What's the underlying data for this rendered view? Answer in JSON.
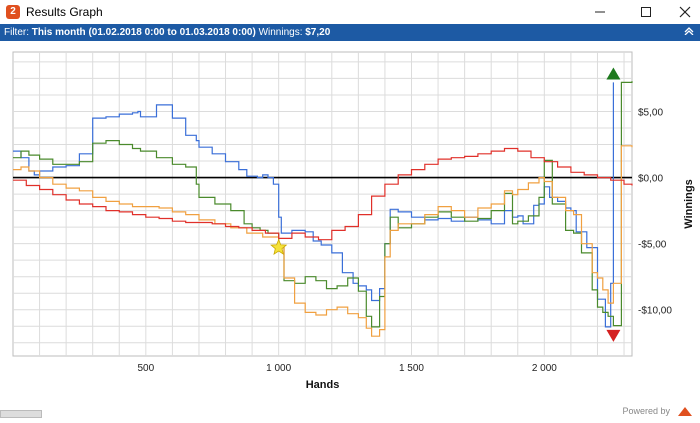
{
  "window": {
    "title": "Results Graph",
    "icon": "app-logo-icon",
    "minimize_icon": "minimize-icon",
    "maximize_icon": "maximize-icon",
    "close_icon": "close-icon"
  },
  "filter": {
    "prefix": "Filter:",
    "range": "This month (01.02.2018 0:00 to 01.03.2018 0:00)",
    "winnings_label": "Winnings:",
    "winnings_value": "$7,20",
    "collapse_icon": "chevron-up-icon"
  },
  "footer": {
    "powered_by": "Powered by"
  },
  "colors": {
    "filter_bar": "#1d5aa4",
    "winnings": "#4a8a2c",
    "showdown": "#3a6fd8",
    "nonshowdown": "#e0302a",
    "allin_ev": "#f0a040",
    "zero_line": "#000000",
    "grid": "#dcdcdc",
    "up_marker": "#1e7a1e",
    "down_marker": "#d42020",
    "star_marker": "#f5e23a"
  },
  "chart_data": {
    "type": "line",
    "xlabel": "Hands",
    "ylabel": "Winnings",
    "x_ticks": [
      500,
      1000,
      1500,
      2000
    ],
    "x_tick_labels": [
      "500",
      "1 000",
      "1 500",
      "2 000"
    ],
    "y_ticks": [
      7.5,
      5,
      2.5,
      0,
      -2.5,
      -5,
      -7.5,
      -10
    ],
    "y_tick_labels": [
      "$5,00",
      "$0,00",
      "-$5,00",
      "-$10,00"
    ],
    "y_tick_label_values": [
      5,
      0,
      -5,
      -10
    ],
    "xlim": [
      0,
      2330
    ],
    "ylim": [
      -13.5,
      9.5
    ],
    "grid": true,
    "markers": {
      "up": {
        "x": 2260,
        "y": 7.8
      },
      "down": {
        "x": 2260,
        "y": -11.9
      },
      "star": {
        "x": 1000,
        "y": -5.3
      }
    },
    "series": [
      {
        "color_key": "showdown",
        "x": [
          0,
          30,
          60,
          80,
          100,
          150,
          200,
          250,
          300,
          350,
          400,
          450,
          470,
          480,
          500,
          540,
          600,
          650,
          690,
          700,
          750,
          800,
          850,
          880,
          920,
          940,
          960,
          980,
          1000,
          1010,
          1050,
          1100,
          1130,
          1160,
          1200,
          1240,
          1280,
          1300,
          1330,
          1350,
          1380,
          1400,
          1420,
          1450,
          1500,
          1550,
          1600,
          1650,
          1700,
          1750,
          1800,
          1850,
          1880,
          1900,
          1920,
          1960,
          1980,
          2000,
          2020,
          2050,
          2080,
          2100,
          2120,
          2160,
          2200,
          2230,
          2250,
          2260
        ],
        "y": [
          2.0,
          1.5,
          0.5,
          0.2,
          0.5,
          0.8,
          0.9,
          1.8,
          4.5,
          4.6,
          4.8,
          4.9,
          5.0,
          4.6,
          4.6,
          5.5,
          4.5,
          3.2,
          2.8,
          2.3,
          1.8,
          1.2,
          0.6,
          0.1,
          0.0,
          0.2,
          0.0,
          -0.5,
          -3.0,
          -4.2,
          -4.0,
          -4.1,
          -4.8,
          -5.1,
          -5.7,
          -7.2,
          -8.0,
          -8.2,
          -8.5,
          -9.3,
          -8.4,
          -5.0,
          -2.4,
          -2.6,
          -3.0,
          -3.2,
          -3.1,
          -3.3,
          -3.0,
          -3.2,
          -3.5,
          -2.5,
          -3.0,
          -2.9,
          -3.5,
          -2.1,
          -2.0,
          -0.7,
          -1.5,
          -1.8,
          -2.3,
          -2.5,
          -4.1,
          -5.3,
          -9.2,
          -11.3,
          -8.0,
          7.2
        ]
      },
      {
        "color_key": "winnings",
        "x": [
          0,
          30,
          60,
          100,
          150,
          200,
          250,
          300,
          350,
          400,
          450,
          480,
          500,
          540,
          600,
          650,
          690,
          700,
          760,
          820,
          870,
          900,
          930,
          960,
          1000,
          1020,
          1060,
          1100,
          1140,
          1180,
          1220,
          1260,
          1300,
          1330,
          1350,
          1380,
          1400,
          1420,
          1450,
          1500,
          1550,
          1600,
          1650,
          1700,
          1750,
          1800,
          1850,
          1880,
          1900,
          1940,
          1980,
          2000,
          2030,
          2080,
          2110,
          2140,
          2180,
          2200,
          2220,
          2240,
          2260,
          2290,
          2330
        ],
        "y": [
          1.5,
          2.0,
          1.7,
          1.4,
          1.0,
          1.0,
          1.2,
          2.6,
          2.8,
          2.5,
          2.2,
          2.0,
          2.0,
          1.5,
          1.0,
          0.8,
          -0.5,
          -1.5,
          -2.0,
          -2.5,
          -3.5,
          -3.8,
          -4.0,
          -4.2,
          -5.3,
          -7.8,
          -8.0,
          -7.5,
          -7.8,
          -8.4,
          -8.2,
          -7.6,
          -8.6,
          -10.5,
          -11.3,
          -9.0,
          -5.0,
          -3.0,
          -3.8,
          -3.5,
          -3.0,
          -2.6,
          -3.0,
          -3.3,
          -3.1,
          -2.5,
          -1.2,
          -3.5,
          -3.3,
          -2.9,
          -1.5,
          1.3,
          -2.0,
          -4.0,
          -4.2,
          -5.7,
          -8.5,
          -9.8,
          -10.2,
          -10.5,
          -11.2,
          7.2,
          7.3
        ]
      },
      {
        "color_key": "allin_ev",
        "x": [
          0,
          30,
          60,
          100,
          150,
          200,
          250,
          300,
          350,
          400,
          450,
          500,
          550,
          600,
          650,
          700,
          760,
          820,
          880,
          940,
          1000,
          1020,
          1060,
          1100,
          1140,
          1180,
          1220,
          1260,
          1300,
          1330,
          1350,
          1380,
          1400,
          1420,
          1450,
          1500,
          1550,
          1600,
          1650,
          1700,
          1750,
          1800,
          1850,
          1880,
          1900,
          1940,
          1980,
          2000,
          2030,
          2080,
          2110,
          2140,
          2180,
          2200,
          2220,
          2240,
          2260,
          2290,
          2330
        ],
        "y": [
          0.6,
          0.8,
          0.5,
          0.0,
          -0.5,
          -0.8,
          -1.0,
          -1.5,
          -1.8,
          -2.0,
          -2.2,
          -2.2,
          -2.3,
          -2.6,
          -2.8,
          -3.2,
          -3.5,
          -3.8,
          -4.2,
          -4.5,
          -5.3,
          -7.6,
          -9.5,
          -10.2,
          -10.4,
          -10.0,
          -9.8,
          -10.3,
          -10.6,
          -11.4,
          -12.0,
          -11.5,
          -6.0,
          -4.0,
          -3.5,
          -3.5,
          -2.8,
          -2.2,
          -2.5,
          -3.0,
          -2.3,
          -2.0,
          -1.0,
          -1.3,
          -0.9,
          -0.4,
          0.0,
          -0.3,
          -1.5,
          -2.5,
          -2.8,
          -5.0,
          -7.2,
          -7.6,
          -8.5,
          -9.5,
          -8.0,
          2.4,
          2.3
        ]
      },
      {
        "color_key": "nonshowdown",
        "x": [
          0,
          50,
          100,
          150,
          200,
          250,
          300,
          350,
          400,
          450,
          500,
          550,
          600,
          650,
          700,
          750,
          800,
          850,
          900,
          950,
          1000,
          1050,
          1100,
          1150,
          1200,
          1250,
          1300,
          1350,
          1400,
          1450,
          1500,
          1550,
          1600,
          1650,
          1700,
          1750,
          1800,
          1850,
          1900,
          1950,
          2000,
          2050,
          2100,
          2150,
          2200,
          2250,
          2300,
          2330
        ],
        "y": [
          -0.2,
          -0.6,
          -0.9,
          -1.3,
          -1.7,
          -2.0,
          -2.2,
          -2.5,
          -2.6,
          -2.8,
          -3.0,
          -3.1,
          -3.3,
          -3.4,
          -3.4,
          -3.5,
          -3.7,
          -3.8,
          -4.0,
          -4.2,
          -4.6,
          -4.2,
          -4.5,
          -4.7,
          -4.0,
          -3.7,
          -2.8,
          -1.4,
          -0.5,
          0.2,
          0.6,
          1.0,
          1.4,
          1.5,
          1.6,
          1.8,
          2.0,
          2.2,
          2.0,
          1.5,
          1.2,
          0.8,
          0.4,
          0.2,
          0.0,
          -0.2,
          -0.5,
          -0.6
        ]
      }
    ]
  }
}
